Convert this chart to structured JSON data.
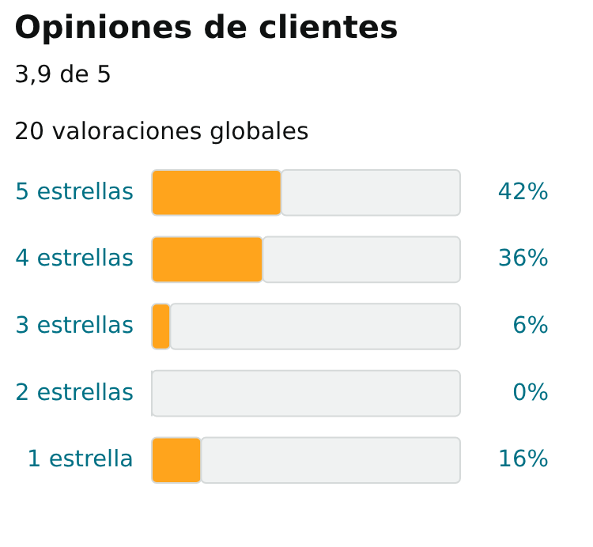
{
  "chart_data": {
    "type": "bar",
    "orientation": "horizontal",
    "stacked": true,
    "title": "Opiniones de clientes",
    "annotations": [
      "3,9 de 5",
      "20 valoraciones globales"
    ],
    "categories": [
      "5 estrellas",
      "4 estrellas",
      "3 estrellas",
      "2 estrellas",
      "1 estrella"
    ],
    "series": [
      {
        "color": "#ffa41c",
        "values": [
          42,
          36,
          6,
          0,
          16
        ],
        "value_labels": [
          "42%",
          "36%",
          "6%",
          "0%",
          "16%"
        ]
      },
      {
        "color": "#f0f2f2",
        "values": [
          58,
          64,
          94,
          100,
          84
        ]
      }
    ],
    "xlim": [
      0,
      100
    ],
    "tick_labels": "y",
    "grid": false
  }
}
